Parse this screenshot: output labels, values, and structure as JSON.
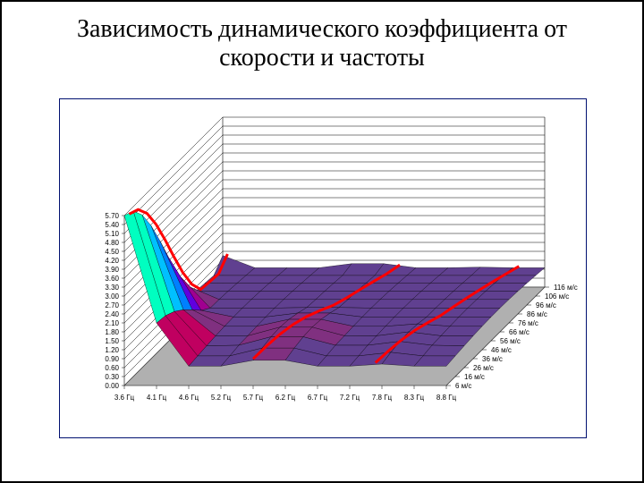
{
  "title": "Зависимость динамического коэффициента от скорости и частоты",
  "chart": {
    "type": "surface-3d",
    "frame_border_color": "#001070",
    "background_color": "#ffffff",
    "floor_color": "#b0b0b0",
    "floor_edge_color": "#404040",
    "backwall_line_color": "#000000",
    "highlight_line_color": "#ff0000",
    "highlight_line_width": 3,
    "z_axis": {
      "min": 0.0,
      "max": 5.7,
      "step": 0.3,
      "ticks": [
        "0.00",
        "0.30",
        "0.60",
        "0.90",
        "1.20",
        "1.50",
        "1.80",
        "2.10",
        "2.40",
        "2.70",
        "3.00",
        "3.30",
        "3.60",
        "3.90",
        "4.20",
        "4.50",
        "4.80",
        "5.10",
        "5.40",
        "5.70"
      ]
    },
    "x_axis": {
      "label_suffix": " Гц",
      "ticks": [
        "3.6 Гц",
        "4.1 Гц",
        "4.6 Гц",
        "5.2 Гц",
        "5.7 Гц",
        "6.2 Гц",
        "6.7 Гц",
        "7.2 Гц",
        "7.8 Гц",
        "8.3 Гц",
        "8.8 Гц"
      ]
    },
    "y_axis": {
      "label_suffix": " м/с",
      "ticks": [
        "6 м/с",
        "16 м/с",
        "26 м/с",
        "36 м/с",
        "46 м/с",
        "56 м/с",
        "66 м/с",
        "76 м/с",
        "86 м/с",
        "96 м/с",
        "106 м/с",
        "116 м/с"
      ]
    },
    "surface_bands": [
      {
        "range": "5.40-5.70",
        "color": "#ff2020"
      },
      {
        "range": "5.10-5.40",
        "color": "#ff8000"
      },
      {
        "range": "4.80-5.10",
        "color": "#ffc000"
      },
      {
        "range": "4.50-4.80",
        "color": "#ffff00"
      },
      {
        "range": "4.20-4.50",
        "color": "#a0ff00"
      },
      {
        "range": "3.90-4.20",
        "color": "#40ff40"
      },
      {
        "range": "3.60-3.90",
        "color": "#00ffc0"
      },
      {
        "range": "3.30-3.60",
        "color": "#00ffff"
      },
      {
        "range": "3.00-3.30",
        "color": "#00c0ff"
      },
      {
        "range": "2.70-3.00",
        "color": "#0080ff"
      },
      {
        "range": "2.40-2.70",
        "color": "#4040ff"
      },
      {
        "range": "2.10-2.40",
        "color": "#6000e0"
      },
      {
        "range": "1.80-2.10",
        "color": "#8000c0"
      },
      {
        "range": "1.50-1.80",
        "color": "#a00090"
      },
      {
        "range": "1.20-1.50",
        "color": "#c00060"
      },
      {
        "range": "0.90-1.20",
        "color": "#803080"
      },
      {
        "range": "0.60-0.90",
        "color": "#604090"
      },
      {
        "range": "0.30-0.60",
        "color": "#4050a0"
      },
      {
        "range": "0.00-0.30",
        "color": "#9090c0"
      }
    ],
    "peak": {
      "x_index": 0,
      "y_index": 0,
      "z": 5.7
    }
  }
}
